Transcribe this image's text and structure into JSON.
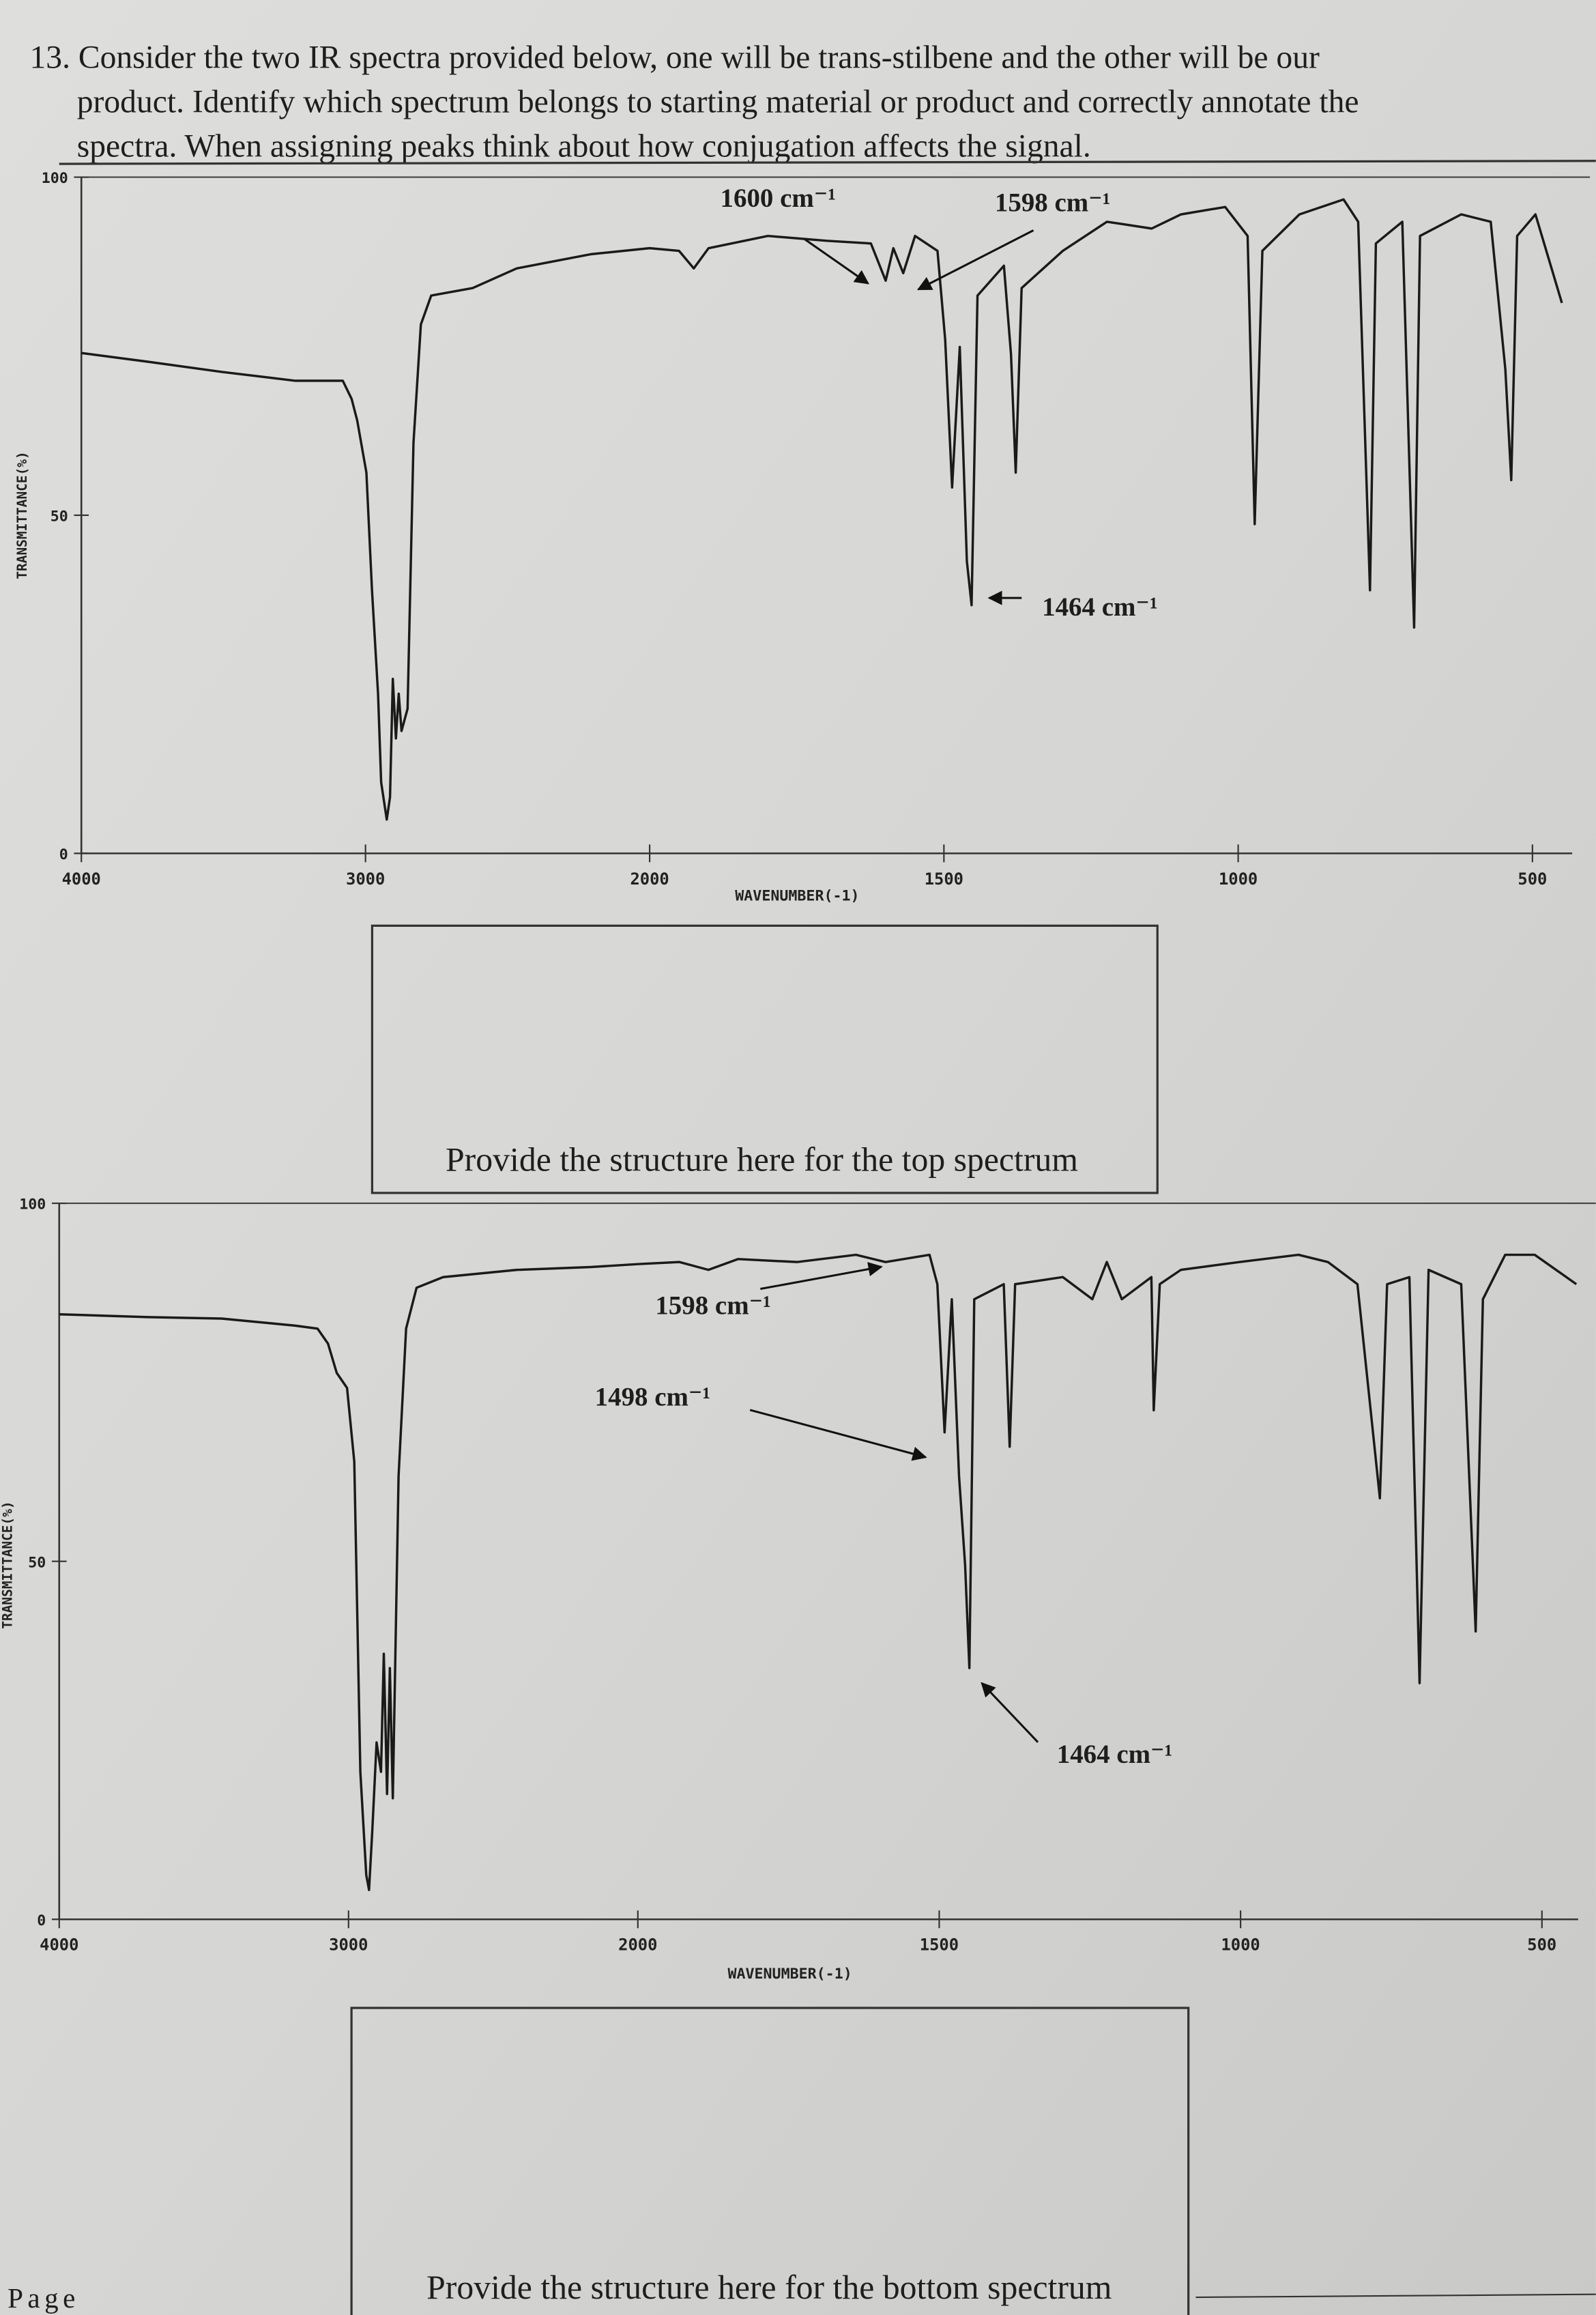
{
  "question": [
    "13. Consider the two IR spectra provided below, one will be trans-stilbene and the other will be our",
    "product. Identify which spectrum belongs to starting material or product and correctly annotate the",
    "spectra. When assigning peaks think about how conjugation affects the signal."
  ],
  "chart_data": [
    {
      "type": "line",
      "ylabel": "TRANSMITTANCE(%)",
      "xlabel": "WAVENUMBER(-1)",
      "xlim": [
        4000,
        450
      ],
      "x_scale_break": 2000,
      "xticks": [
        4000,
        3000,
        2000,
        1500,
        1000,
        500
      ],
      "ylim": [
        0,
        100
      ],
      "yticks": [
        0,
        50,
        100
      ],
      "color": "#1a1a1a",
      "x": [
        4000,
        3766,
        3506,
        3247,
        3080,
        3049,
        3029,
        2997,
        2977,
        2956,
        2945,
        2925,
        2914,
        2904,
        2893,
        2883,
        2873,
        2852,
        2831,
        2805,
        2769,
        2623,
        2468,
        2208,
        2000,
        1950,
        1925,
        1900,
        1799,
        1699,
        1624,
        1599,
        1586,
        1569,
        1549,
        1511,
        1498,
        1486,
        1473,
        1461,
        1453,
        1443,
        1398,
        1386,
        1378,
        1368,
        1298,
        1223,
        1147,
        1097,
        1022,
        984,
        972,
        959,
        896,
        821,
        796,
        776,
        766,
        721,
        701,
        691,
        621,
        571,
        546,
        536,
        526,
        495,
        450
      ],
      "values": [
        74,
        72.7,
        71.2,
        69.9,
        69.9,
        67.2,
        64,
        56.3,
        38.9,
        23.6,
        10.5,
        5,
        8.3,
        25.8,
        17,
        23.6,
        18.1,
        21.4,
        60.7,
        78.2,
        82.5,
        83.6,
        86.5,
        88.6,
        89.5,
        89.1,
        86.5,
        89.5,
        91.3,
        90.6,
        90.2,
        84.7,
        89.5,
        85.8,
        91.3,
        89.1,
        76,
        54.1,
        74.9,
        43.2,
        36.7,
        82.5,
        86.9,
        73.8,
        56.3,
        83.6,
        89.1,
        93.4,
        92.4,
        94.5,
        95.6,
        91.3,
        48.7,
        89.1,
        94.5,
        96.7,
        93.4,
        38.9,
        90.2,
        93.4,
        33.4,
        91.3,
        94.5,
        93.4,
        71.6,
        55.2,
        91.3,
        94.5,
        81.4
      ],
      "annotations": [
        "1600 cm⁻¹",
        "1598 cm⁻¹",
        "1464 cm⁻¹"
      ],
      "caption": "Provide the structure here for the top spectrum"
    },
    {
      "type": "line",
      "ylabel": "TRANSMITTANCE(%)",
      "xlabel": "WAVENUMBER(-1)",
      "xlim": [
        4000,
        440
      ],
      "x_scale_break": 2000,
      "xticks": [
        4000,
        3000,
        2000,
        1500,
        1000,
        500
      ],
      "ylim": [
        0,
        100
      ],
      "yticks": [
        0,
        50,
        100
      ],
      "color": "#1a1a1a",
      "x": [
        4000,
        3694,
        3439,
        3184,
        3107,
        3071,
        3041,
        3005,
        2980,
        2959,
        2939,
        2929,
        2918,
        2903,
        2888,
        2878,
        2867,
        2857,
        2847,
        2827,
        2801,
        2765,
        2673,
        2418,
        2163,
        2000,
        1931,
        1883,
        1834,
        1736,
        1638,
        1589,
        1516,
        1503,
        1491,
        1479,
        1467,
        1457,
        1450,
        1442,
        1393,
        1383,
        1374,
        1295,
        1246,
        1222,
        1197,
        1148,
        1144,
        1134,
        1099,
        1002,
        904,
        855,
        806,
        769,
        757,
        720,
        703,
        688,
        634,
        610,
        598,
        561,
        512,
        443
      ],
      "values": [
        84.5,
        84.1,
        83.9,
        82.9,
        82.5,
        80.4,
        76.3,
        74.2,
        63.9,
        20.6,
        6.2,
        4.1,
        12.4,
        24.7,
        20.6,
        37.1,
        17.5,
        35.1,
        16.9,
        61.9,
        82.5,
        88.2,
        89.7,
        90.7,
        91.1,
        91.5,
        91.8,
        90.7,
        92.2,
        91.8,
        92.8,
        91.8,
        92.8,
        88.7,
        68,
        86.6,
        61.9,
        49.5,
        35.1,
        86.6,
        88.7,
        66,
        88.7,
        89.7,
        86.6,
        91.8,
        86.6,
        89.7,
        71.1,
        88.7,
        90.7,
        91.8,
        92.8,
        91.8,
        88.7,
        58.8,
        88.7,
        89.7,
        33,
        90.7,
        88.7,
        40.2,
        86.6,
        92.8,
        92.8,
        88.7
      ],
      "annotations": [
        "1598 cm⁻¹",
        "1498 cm⁻¹",
        "1464 cm⁻¹"
      ],
      "caption": "Provide the structure here for the bottom spectrum"
    }
  ],
  "footer": "Page"
}
